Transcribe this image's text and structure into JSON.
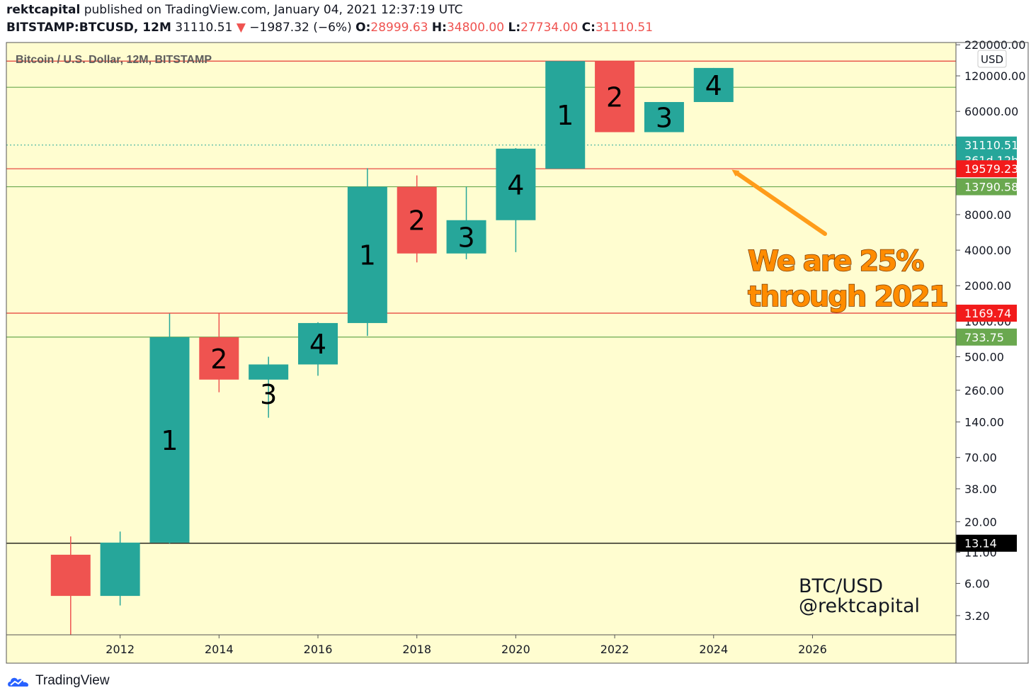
{
  "header": {
    "author": "rektcapital",
    "published": "published on TradingView.com, January 04, 2021 12:37:19 UTC",
    "symbol": "BITSTAMP:BTCUSD, 12M",
    "last": "31110.51",
    "down_arrow": "▼",
    "change": "−1987.32 (−6%)",
    "o_label": "O:",
    "o_value": "28999.63",
    "h_label": "H:",
    "h_value": "34800.00",
    "l_label": "L:",
    "l_value": "27734.00",
    "c_label": "C:",
    "c_value": "31110.51"
  },
  "colors": {
    "background": "#fffdd0",
    "up": "#26a69a",
    "down": "#ef5350",
    "red_level": "#e53935",
    "green_level": "#6aa84f",
    "arrow": "#ff9c1a",
    "annotation": "#ff8c00"
  },
  "footer": {
    "logo_text": "TradingView"
  },
  "chart_data": {
    "type": "candlestick",
    "title": "Bitcoin / U.S. Dollar, 12M, BITSTAMP",
    "currency": "USD",
    "yscale": "log",
    "ylim": [
      2.2,
      230000
    ],
    "xlim": [
      2009.7,
      2028.9
    ],
    "x_ticks": [
      "2012",
      "2014",
      "2016",
      "2018",
      "2020",
      "2022",
      "2024",
      "2026"
    ],
    "y_ticks": [
      "220000.00",
      "120000.00",
      "60000.00",
      "8000.00",
      "4000.00",
      "2000.00",
      "1000.00",
      "500.00",
      "260.00",
      "140.00",
      "70.00",
      "38.00",
      "20.00",
      "11.00",
      "6.00",
      "3.20"
    ],
    "candles": [
      {
        "year": 2011,
        "open": 10.5,
        "high": 15,
        "low": 2.2,
        "close": 4.7,
        "label": ""
      },
      {
        "year": 2012,
        "open": 4.7,
        "high": 16.5,
        "low": 3.9,
        "close": 13.3,
        "label": ""
      },
      {
        "year": 2013,
        "open": 13.3,
        "high": 1160,
        "low": 13.1,
        "close": 733,
        "label": "1"
      },
      {
        "year": 2014,
        "open": 733,
        "high": 1165,
        "low": 250,
        "close": 320,
        "label": "2"
      },
      {
        "year": 2015,
        "open": 320,
        "high": 500,
        "low": 152,
        "close": 430,
        "label": "3"
      },
      {
        "year": 2016,
        "open": 430,
        "high": 980,
        "low": 345,
        "close": 965,
        "label": "4"
      },
      {
        "year": 2017,
        "open": 965,
        "high": 19800,
        "low": 750,
        "close": 13790,
        "label": "1"
      },
      {
        "year": 2018,
        "open": 13790,
        "high": 17200,
        "low": 3150,
        "close": 3750,
        "label": "2"
      },
      {
        "year": 2019,
        "open": 3750,
        "high": 13800,
        "low": 3350,
        "close": 7180,
        "label": "3"
      },
      {
        "year": 2020,
        "open": 7180,
        "high": 29300,
        "low": 3850,
        "close": 28990,
        "label": "4"
      },
      {
        "year": 2021,
        "open": 19579,
        "high": 160000,
        "low": 19579,
        "close": 160000,
        "label": "1"
      },
      {
        "year": 2022,
        "open": 160000,
        "high": 160000,
        "low": 40000,
        "close": 40000,
        "label": "2"
      },
      {
        "year": 2023,
        "open": 40000,
        "high": 72000,
        "low": 40000,
        "close": 72000,
        "label": "3"
      },
      {
        "year": 2024,
        "open": 72000,
        "high": 140000,
        "low": 72000,
        "close": 140000,
        "label": "4"
      }
    ],
    "horizontal_levels": [
      {
        "value": 160000,
        "color": "red"
      },
      {
        "value": 96000,
        "color": "green"
      },
      {
        "value": 31110.51,
        "color": "dotted"
      },
      {
        "value": 19579.23,
        "color": "red"
      },
      {
        "value": 13790.58,
        "color": "green"
      },
      {
        "value": 1169.74,
        "color": "red"
      },
      {
        "value": 733.75,
        "color": "green"
      },
      {
        "value": 13.14,
        "color": "black"
      }
    ],
    "price_labels": [
      {
        "text": "31110.51",
        "value": 31110.51,
        "color": "#26a69a"
      },
      {
        "text": "361d 12h",
        "value": 23200,
        "color": "#26a69a"
      },
      {
        "text": "19579.23",
        "value": 19579.23,
        "color": "#f21b1b"
      },
      {
        "text": "13790.58",
        "value": 13790.58,
        "color": "#6aa84f"
      },
      {
        "text": "1169.74",
        "value": 1169.74,
        "color": "#f21b1b"
      },
      {
        "text": "733.75",
        "value": 733.75,
        "color": "#6aa84f"
      },
      {
        "text": "13.14",
        "value": 13.14,
        "color": "#000000"
      }
    ],
    "annotation": [
      "We are 25%",
      "through 2021"
    ],
    "watermark": [
      "BTC/USD",
      "@rektcapital"
    ]
  }
}
